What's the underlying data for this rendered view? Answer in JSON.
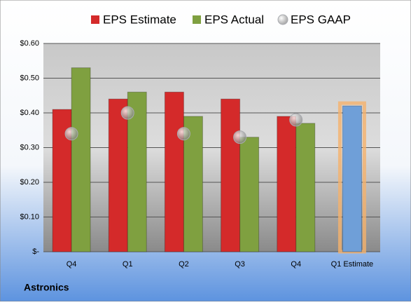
{
  "chart_data": {
    "type": "bar",
    "title": "Astronics",
    "categories": [
      "Q4",
      "Q1",
      "Q2",
      "Q3",
      "Q4",
      "Q1 Estimate"
    ],
    "series": [
      {
        "name": "EPS Estimate",
        "color": "#d42a2a",
        "colors": [
          "#d42a2a",
          "#d42a2a",
          "#d42a2a",
          "#d42a2a",
          "#d42a2a",
          "#6f9fd8"
        ],
        "values": [
          0.41,
          0.44,
          0.46,
          0.44,
          0.39,
          0.42
        ]
      },
      {
        "name": "EPS Actual",
        "color": "#7fa040",
        "values": [
          0.53,
          0.46,
          0.39,
          0.33,
          0.37,
          null
        ]
      },
      {
        "name": "EPS GAAP",
        "type": "scatter",
        "color": "#a9abb0",
        "values": [
          0.34,
          0.4,
          0.34,
          0.33,
          0.38,
          null
        ]
      }
    ],
    "ylim": [
      0,
      0.6
    ],
    "yticks": [
      {
        "value": 0,
        "label": "$-"
      },
      {
        "value": 0.1,
        "label": "$0.10"
      },
      {
        "value": 0.2,
        "label": "$0.20"
      },
      {
        "value": 0.3,
        "label": "$0.30"
      },
      {
        "value": 0.4,
        "label": "$0.40"
      },
      {
        "value": 0.5,
        "label": "$0.50"
      },
      {
        "value": 0.6,
        "label": "$0.60"
      }
    ],
    "grid": true
  }
}
